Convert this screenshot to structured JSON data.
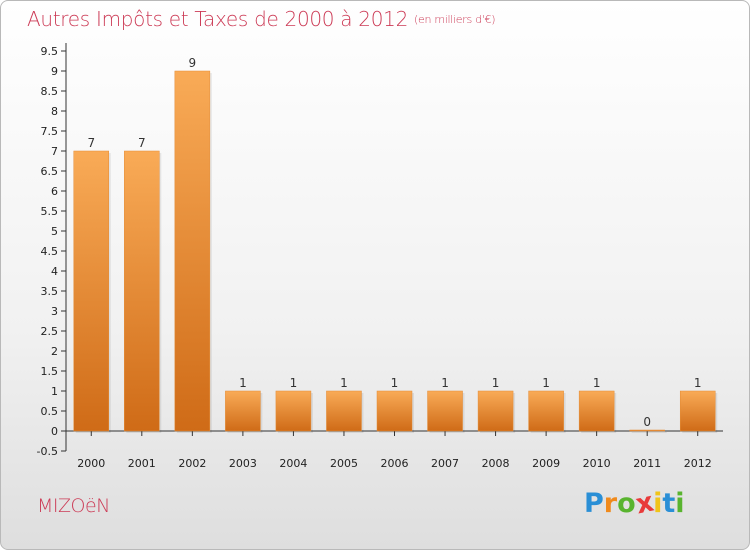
{
  "title": "Autres Impôts et Taxes de 2000 à 2012",
  "unit": "(en milliers d'€)",
  "commune": "MIZOëN",
  "brand": {
    "letters": [
      "P",
      "r",
      "o",
      "x",
      "i",
      "t",
      "i"
    ],
    "colors": [
      "#2a8fd6",
      "#f08a1c",
      "#59b42f",
      "#e83a3a",
      "#f0c419",
      "#2a8fd6",
      "#59b42f"
    ]
  },
  "colors": {
    "bar_light": "#f9ab57",
    "bar_dark": "#cf6b17",
    "title": "#cc3b56"
  },
  "chart_data": {
    "type": "bar",
    "categories": [
      "2000",
      "2001",
      "2002",
      "2003",
      "2004",
      "2005",
      "2006",
      "2007",
      "2008",
      "2009",
      "2010",
      "2011",
      "2012"
    ],
    "values": [
      7,
      7,
      9,
      1,
      1,
      1,
      1,
      1,
      1,
      1,
      1,
      0,
      1
    ],
    "value_labels": [
      "7",
      "7",
      "9",
      "1",
      "1",
      "1",
      "1",
      "1",
      "1",
      "1",
      "1",
      "0",
      "1"
    ],
    "yticks": [
      "-0.5",
      "0",
      "0.5",
      "1",
      "1.5",
      "2",
      "2.5",
      "3",
      "3.5",
      "4",
      "4.5",
      "5",
      "5.5",
      "6",
      "6.5",
      "7",
      "7.5",
      "8",
      "8.5",
      "9",
      "9.5"
    ],
    "ylim": [
      -0.5,
      9.5
    ],
    "grid": false,
    "xlabel": "",
    "ylabel": ""
  }
}
